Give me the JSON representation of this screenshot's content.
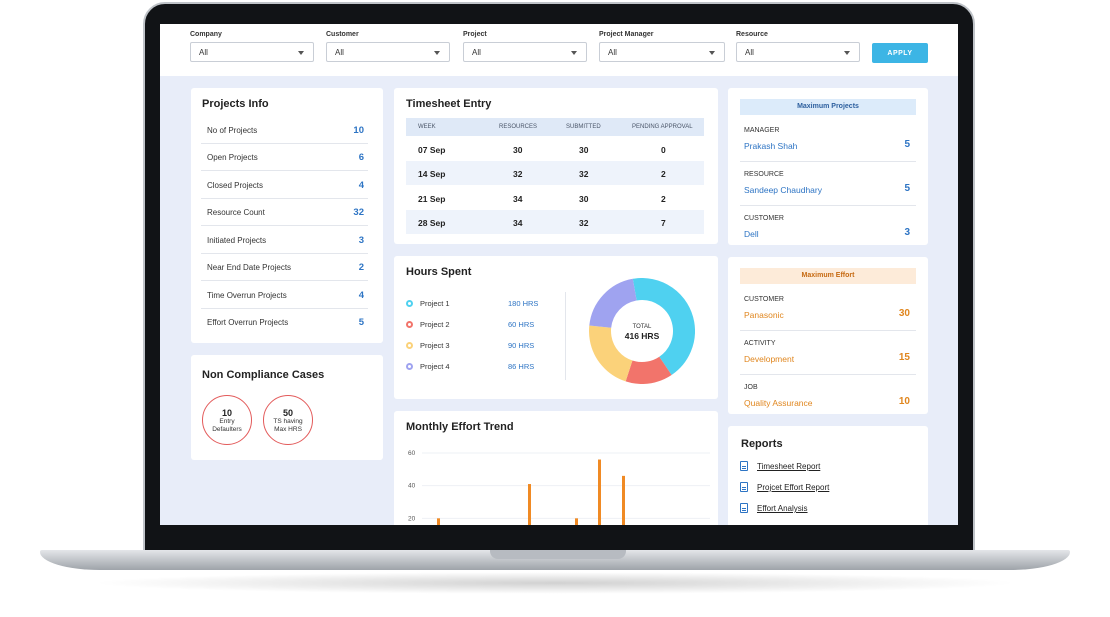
{
  "filters": [
    {
      "label": "Company",
      "value": "All"
    },
    {
      "label": "Customer",
      "value": "All"
    },
    {
      "label": "Project",
      "value": "All"
    },
    {
      "label": "Project Manager",
      "value": "All"
    },
    {
      "label": "Resource",
      "value": "All"
    }
  ],
  "apply_label": "APPLY",
  "projects_info": {
    "title": "Projects Info",
    "rows": [
      {
        "label": "No of Projects",
        "value": "10"
      },
      {
        "label": "Open Projects",
        "value": "6"
      },
      {
        "label": "Closed Projects",
        "value": "4"
      },
      {
        "label": "Resource Count",
        "value": "32"
      },
      {
        "label": "Initiated Projects",
        "value": "3"
      },
      {
        "label": "Near End Date Projects",
        "value": "2"
      },
      {
        "label": "Time Overrun Projects",
        "value": "4"
      },
      {
        "label": "Effort Overrun Projects",
        "value": "5"
      }
    ]
  },
  "non_compliance": {
    "title": "Non Compliance Cases",
    "items": [
      {
        "value": "10",
        "label_line1": "Entry",
        "label_line2": "Defaulters"
      },
      {
        "value": "50",
        "label_line1": "TS having",
        "label_line2": "Max HRS"
      }
    ]
  },
  "timesheet": {
    "title": "Timesheet Entry",
    "columns": [
      "WEEK",
      "RESOURCES",
      "SUBMITTED",
      "PENDING APPROVAL"
    ],
    "rows": [
      [
        "07 Sep",
        "30",
        "30",
        "0"
      ],
      [
        "14 Sep",
        "32",
        "32",
        "2"
      ],
      [
        "21 Sep",
        "34",
        "30",
        "2"
      ],
      [
        "28 Sep",
        "34",
        "32",
        "7"
      ]
    ]
  },
  "hours_spent": {
    "title": "Hours Spent",
    "total_label": "TOTAL",
    "total_value": "416 HRS",
    "items": [
      {
        "name": "Project 1",
        "hours": "180 HRS",
        "color": "#4fd1f0"
      },
      {
        "name": "Project 2",
        "hours": "60 HRS",
        "color": "#f2746b"
      },
      {
        "name": "Project 3",
        "hours": "90 HRS",
        "color": "#fbd27a"
      },
      {
        "name": "Project 4",
        "hours": "86 HRS",
        "color": "#9fa3f0"
      }
    ]
  },
  "monthly_effort": {
    "title": "Monthly Effort Trend"
  },
  "chart_data": {
    "type": "bar",
    "yticks": [
      "60",
      "40",
      "20"
    ],
    "ylim": [
      0,
      60
    ],
    "values": [
      20,
      41,
      20,
      56,
      46
    ],
    "color": "#f08a24"
  },
  "max_projects": {
    "banner": "Maximum Projects",
    "rows": [
      {
        "category": "MANAGER",
        "name": "Prakash Shah",
        "value": "5"
      },
      {
        "category": "RESOURCE",
        "name": "Sandeep Chaudhary",
        "value": "5"
      },
      {
        "category": "CUSTOMER",
        "name": "Dell",
        "value": "3"
      }
    ]
  },
  "max_effort": {
    "banner": "Maximum Effort",
    "rows": [
      {
        "category": "CUSTOMER",
        "name": "Panasonic",
        "value": "30"
      },
      {
        "category": "ACTIVITY",
        "name": "Development",
        "value": "15"
      },
      {
        "category": "JOB",
        "name": "Quality Assurance",
        "value": "10"
      }
    ]
  },
  "reports": {
    "title": "Reports",
    "items": [
      "Timesheet Report",
      "Projcet Effort Report",
      "Effort Analysis"
    ]
  },
  "colors": {
    "accent_blue": "#2d74c4",
    "accent_orange": "#e0861e",
    "apply_button": "#3cb5e5"
  }
}
